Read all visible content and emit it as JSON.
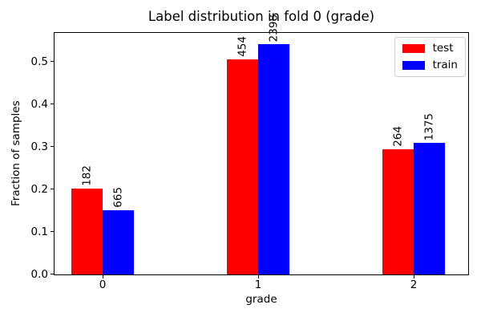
{
  "chart_data": {
    "type": "bar",
    "title": "Label distribution in fold 0 (grade)",
    "xlabel": "grade",
    "ylabel": "Fraction of samples",
    "categories": [
      "0",
      "1",
      "2"
    ],
    "series": [
      {
        "name": "test",
        "color": "#ff0000",
        "counts": [
          182,
          454,
          264
        ],
        "fractions": [
          0.2022,
          0.5044,
          0.2933
        ]
      },
      {
        "name": "train",
        "color": "#0000ff",
        "counts": [
          665,
          2398,
          1375
        ],
        "fractions": [
          0.1498,
          0.5403,
          0.3098
        ]
      }
    ],
    "bar_value_labels": {
      "rotation": 90,
      "source": "counts"
    },
    "yticks": [
      0.0,
      0.1,
      0.2,
      0.3,
      0.4,
      0.5
    ],
    "ytick_labels": [
      "0.0",
      "0.1",
      "0.2",
      "0.3",
      "0.4",
      "0.5"
    ],
    "ylim": [
      0,
      0.567
    ],
    "grid": false,
    "legend": {
      "position": "upper right",
      "entries": [
        "test",
        "train"
      ]
    }
  }
}
